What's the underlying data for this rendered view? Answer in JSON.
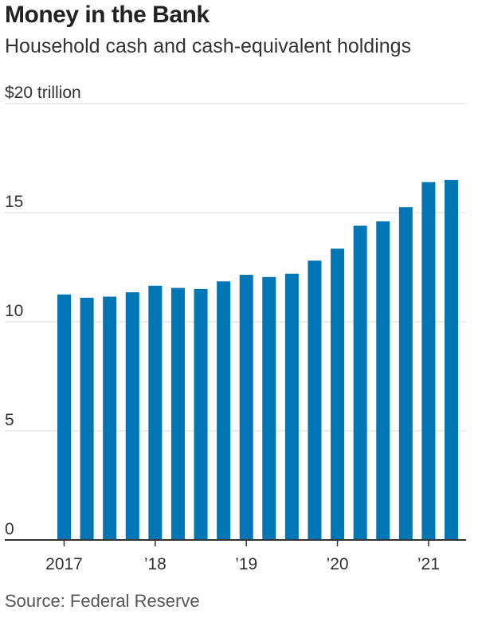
{
  "title": "Money in the Bank",
  "subtitle": "Household cash and cash-equivalent holdings",
  "source": "Source: Federal Reserve",
  "colors": {
    "bar": "#0077B4",
    "grid": "#d9d9d9",
    "axis": "#333333"
  },
  "chart_data": {
    "type": "bar",
    "title": "Money in the Bank",
    "subtitle": "Household cash and cash-equivalent holdings",
    "ylim": [
      0,
      20
    ],
    "yticks": [
      {
        "value": 0,
        "label": "0"
      },
      {
        "value": 5,
        "label": "5"
      },
      {
        "value": 10,
        "label": "10"
      },
      {
        "value": 15,
        "label": "15"
      },
      {
        "value": 20,
        "label": "$20 trillion"
      }
    ],
    "xtick_labels": [
      {
        "index": 0,
        "label": "2017"
      },
      {
        "index": 4,
        "label": "’18"
      },
      {
        "index": 8,
        "label": "’19"
      },
      {
        "index": 12,
        "label": "’20"
      },
      {
        "index": 16,
        "label": "’21"
      }
    ],
    "categories": [
      "2017 Q1",
      "2017 Q2",
      "2017 Q3",
      "2017 Q4",
      "2018 Q1",
      "2018 Q2",
      "2018 Q3",
      "2018 Q4",
      "2019 Q1",
      "2019 Q2",
      "2019 Q3",
      "2019 Q4",
      "2020 Q1",
      "2020 Q2",
      "2020 Q3",
      "2020 Q4",
      "2021 Q1",
      "2021 Q2"
    ],
    "values": [
      11.25,
      11.1,
      11.15,
      11.35,
      11.65,
      11.55,
      11.5,
      11.85,
      12.15,
      12.05,
      12.2,
      12.8,
      13.35,
      14.4,
      14.6,
      15.25,
      16.4,
      16.5
    ],
    "grid": true
  }
}
